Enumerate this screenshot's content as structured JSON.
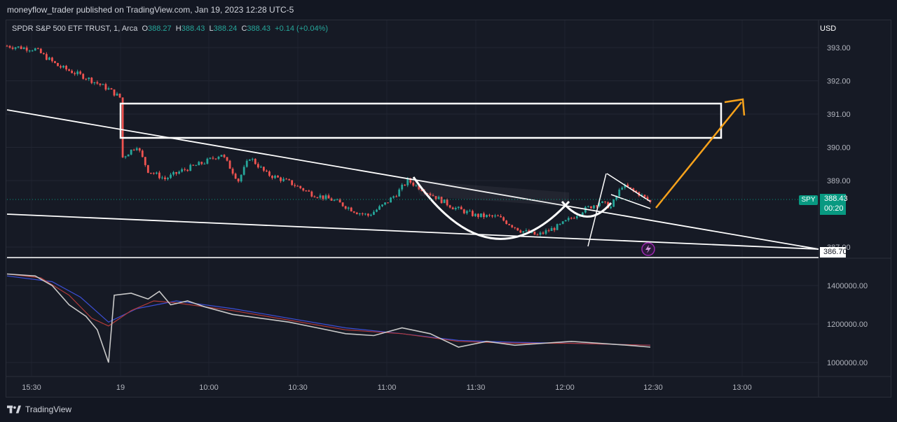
{
  "header": {
    "publish_text": "moneyflow_trader published on TradingView.com, Jan 19, 2023 12:28 UTC-5"
  },
  "legend": {
    "symbol": "SPDR S&P 500 ETF TRUST, 1, Arca",
    "open_label": "O",
    "open": "388.27",
    "high_label": "H",
    "high": "388.43",
    "low_label": "L",
    "low": "388.24",
    "close_label": "C",
    "close": "388.43",
    "change": "+0.14 (+0.04%)"
  },
  "tags": {
    "symbol": "SPY",
    "last_price": "388.43",
    "countdown": "00:20",
    "line_level": "386.70"
  },
  "footer": {
    "brand": "TradingView"
  },
  "colors": {
    "up": "#26a69a",
    "down": "#ef5350",
    "background": "#131722",
    "drawing": "#ffffff",
    "arrow": "#f7a21b",
    "grid": "#2a2e39"
  },
  "chart_data": {
    "type": "candlestick",
    "currency": "USD",
    "y_ticks": [
      "393.00",
      "392.00",
      "391.00",
      "390.00",
      "389.00",
      "387.00"
    ],
    "y_tick_values": [
      393,
      392,
      391,
      390,
      389,
      387
    ],
    "x_ticks": [
      "15:30",
      "19",
      "10:00",
      "10:30",
      "11:00",
      "11:30",
      "12:00",
      "12:30",
      "13:00"
    ],
    "price_range": [
      386.45,
      393.5
    ],
    "path_points": [
      {
        "t": 0,
        "p": 393.05
      },
      {
        "t": 10,
        "p": 392.95
      },
      {
        "t": 18,
        "p": 392.45
      },
      {
        "t": 28,
        "p": 392.1
      },
      {
        "t": 36,
        "p": 391.75
      },
      {
        "t": 40,
        "p": 391.5
      },
      {
        "t": 41,
        "p": 389.7
      },
      {
        "t": 46,
        "p": 390.05
      },
      {
        "t": 50,
        "p": 389.3
      },
      {
        "t": 56,
        "p": 389.05
      },
      {
        "t": 62,
        "p": 389.3
      },
      {
        "t": 70,
        "p": 389.55
      },
      {
        "t": 76,
        "p": 389.8
      },
      {
        "t": 82,
        "p": 389.0
      },
      {
        "t": 86,
        "p": 389.7
      },
      {
        "t": 92,
        "p": 389.2
      },
      {
        "t": 100,
        "p": 388.95
      },
      {
        "t": 108,
        "p": 388.6
      },
      {
        "t": 116,
        "p": 388.4
      },
      {
        "t": 124,
        "p": 388.05
      },
      {
        "t": 128,
        "p": 387.95
      },
      {
        "t": 134,
        "p": 388.3
      },
      {
        "t": 138,
        "p": 388.6
      },
      {
        "t": 142,
        "p": 389.0
      },
      {
        "t": 150,
        "p": 388.6
      },
      {
        "t": 158,
        "p": 388.2
      },
      {
        "t": 166,
        "p": 387.95
      },
      {
        "t": 174,
        "p": 387.9
      },
      {
        "t": 182,
        "p": 387.5
      },
      {
        "t": 188,
        "p": 387.35
      },
      {
        "t": 196,
        "p": 387.65
      },
      {
        "t": 204,
        "p": 388.1
      },
      {
        "t": 210,
        "p": 388.35
      },
      {
        "t": 214,
        "p": 388.2
      },
      {
        "t": 218,
        "p": 388.85
      },
      {
        "t": 224,
        "p": 388.6
      },
      {
        "t": 228,
        "p": 388.35
      }
    ],
    "volume_range": [
      940000,
      1480000
    ],
    "volume_ticks": [
      "1400000.00",
      "1200000.00",
      "1000000.00"
    ],
    "volume_tick_values": [
      1400000,
      1200000,
      1000000
    ],
    "volume_gray": [
      {
        "t": 0,
        "v": 1460000
      },
      {
        "t": 10,
        "v": 1450000
      },
      {
        "t": 16,
        "v": 1400000
      },
      {
        "t": 22,
        "v": 1300000
      },
      {
        "t": 28,
        "v": 1240000
      },
      {
        "t": 32,
        "v": 1170000
      },
      {
        "t": 36,
        "v": 1000000
      },
      {
        "t": 38,
        "v": 1350000
      },
      {
        "t": 44,
        "v": 1360000
      },
      {
        "t": 50,
        "v": 1330000
      },
      {
        "t": 54,
        "v": 1370000
      },
      {
        "t": 58,
        "v": 1300000
      },
      {
        "t": 64,
        "v": 1320000
      },
      {
        "t": 70,
        "v": 1290000
      },
      {
        "t": 80,
        "v": 1250000
      },
      {
        "t": 90,
        "v": 1230000
      },
      {
        "t": 100,
        "v": 1210000
      },
      {
        "t": 110,
        "v": 1180000
      },
      {
        "t": 120,
        "v": 1150000
      },
      {
        "t": 130,
        "v": 1140000
      },
      {
        "t": 140,
        "v": 1180000
      },
      {
        "t": 150,
        "v": 1150000
      },
      {
        "t": 160,
        "v": 1080000
      },
      {
        "t": 170,
        "v": 1110000
      },
      {
        "t": 180,
        "v": 1090000
      },
      {
        "t": 190,
        "v": 1100000
      },
      {
        "t": 200,
        "v": 1110000
      },
      {
        "t": 210,
        "v": 1100000
      },
      {
        "t": 220,
        "v": 1090000
      },
      {
        "t": 228,
        "v": 1080000
      }
    ],
    "volume_red": [
      {
        "t": 0,
        "v": 1460000
      },
      {
        "t": 12,
        "v": 1440000
      },
      {
        "t": 22,
        "v": 1350000
      },
      {
        "t": 30,
        "v": 1230000
      },
      {
        "t": 36,
        "v": 1190000
      },
      {
        "t": 44,
        "v": 1270000
      },
      {
        "t": 52,
        "v": 1320000
      },
      {
        "t": 60,
        "v": 1310000
      },
      {
        "t": 80,
        "v": 1270000
      },
      {
        "t": 100,
        "v": 1220000
      },
      {
        "t": 120,
        "v": 1170000
      },
      {
        "t": 140,
        "v": 1150000
      },
      {
        "t": 160,
        "v": 1110000
      },
      {
        "t": 180,
        "v": 1100000
      },
      {
        "t": 200,
        "v": 1100000
      },
      {
        "t": 228,
        "v": 1090000
      }
    ],
    "volume_blue": [
      {
        "t": 0,
        "v": 1450000
      },
      {
        "t": 16,
        "v": 1420000
      },
      {
        "t": 26,
        "v": 1340000
      },
      {
        "t": 36,
        "v": 1210000
      },
      {
        "t": 46,
        "v": 1280000
      },
      {
        "t": 60,
        "v": 1320000
      },
      {
        "t": 80,
        "v": 1280000
      },
      {
        "t": 100,
        "v": 1230000
      },
      {
        "t": 120,
        "v": 1180000
      },
      {
        "t": 140,
        "v": 1150000
      },
      {
        "t": 160,
        "v": 1115000
      },
      {
        "t": 180,
        "v": 1105000
      },
      {
        "t": 200,
        "v": 1100000
      },
      {
        "t": 228,
        "v": 1090000
      }
    ]
  }
}
